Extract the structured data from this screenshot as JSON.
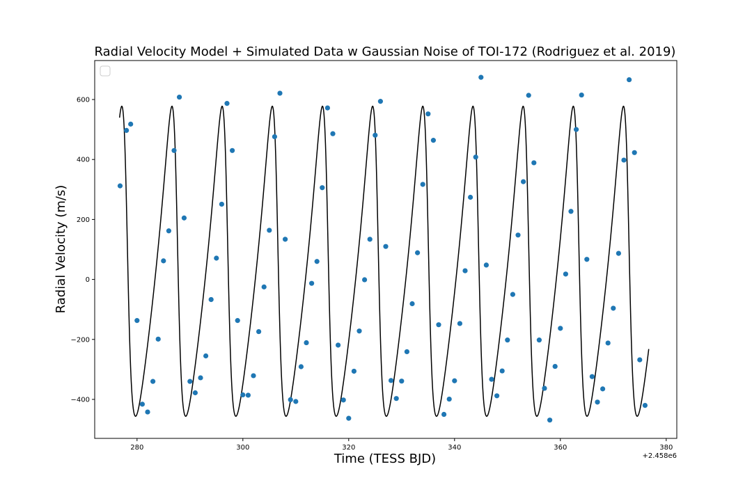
{
  "chart_data": {
    "type": "scatter",
    "title": "Radial Velocity Model + Simulated Data w Gaussian Noise of TOI-172 (Rodriguez et al. 2019)",
    "xlabel": "Time (TESS BJD)",
    "ylabel": "Radial Velocity (m/s)",
    "x_offset_label": "+2.458e6",
    "xlim": [
      272,
      382
    ],
    "ylim": [
      -530,
      730
    ],
    "xticks": [
      280,
      300,
      320,
      340,
      360,
      380
    ],
    "yticks": [
      -400,
      -200,
      0,
      200,
      400,
      600
    ],
    "legend": {
      "placement": "top-left",
      "entries": []
    },
    "colors": {
      "model": "#000000",
      "data": "#1f77b4"
    },
    "model": {
      "period": 9.48,
      "K": 517,
      "gamma": 0,
      "eccentricity": 0.38,
      "omega_deg": 72,
      "time_of_periastron": 278.04,
      "x_range": [
        276.7,
        376.7
      ]
    },
    "series": [
      {
        "x": [
          276.8,
          278.0,
          278.8,
          280.0,
          281.0,
          282.0,
          283.0,
          284.0,
          285.0,
          286.0,
          287.0,
          288.0,
          288.9,
          290.0,
          291.0,
          292.0,
          293.0,
          294.0,
          295.0,
          296.0,
          297.0,
          298.0,
          299.0,
          300.0,
          301.0,
          302.0,
          303.0,
          304.0,
          305.0,
          306.0,
          307.0,
          308.0,
          309.0,
          310.0,
          311.0,
          312.0,
          313.0,
          314.0,
          315.0,
          316.0,
          317.0,
          318.0,
          319.0,
          320.0,
          321.0,
          322.0,
          323.0,
          324.0,
          325.0,
          326.0,
          327.0,
          328.0,
          329.0,
          330.0,
          331.0,
          332.0,
          333.0,
          334.0,
          335.0,
          336.0,
          337.0,
          338.0,
          339.0,
          340.0,
          341.0,
          342.0,
          343.0,
          344.0,
          345.0,
          346.0,
          347.0,
          348.0,
          349.0,
          350.0,
          351.0,
          352.0,
          353.0,
          354.0,
          355.0,
          356.0,
          357.0,
          358.0,
          359.0,
          360.0,
          361.0,
          362.0,
          363.0,
          364.0,
          365.0,
          366.0,
          367.0,
          368.0,
          369.0,
          370.0,
          371.0,
          372.0,
          373.0,
          374.0,
          375.0,
          376.0
        ],
        "y": [
          312,
          497,
          518,
          -137,
          -416,
          -442,
          -340,
          -199,
          62,
          162,
          430,
          608,
          205,
          -340,
          -378,
          -328,
          -255,
          -67,
          71,
          251,
          587,
          430,
          -137,
          -385,
          -386,
          -321,
          -174,
          -25,
          164,
          476,
          621,
          134,
          -401,
          -407,
          -291,
          -211,
          -13,
          60,
          306,
          572,
          486,
          -219,
          -402,
          -463,
          -306,
          -172,
          -1,
          134,
          481,
          594,
          110,
          -337,
          -397,
          -339,
          -241,
          -81,
          89,
          317,
          552,
          464,
          -151,
          -450,
          -399,
          -338,
          -147,
          29,
          274,
          408,
          674,
          48,
          -333,
          -388,
          -305,
          -202,
          -50,
          148,
          326,
          614,
          389,
          -202,
          -363,
          -469,
          -290,
          -163,
          18,
          227,
          500,
          615,
          67,
          -324,
          -409,
          -365,
          -212,
          -96,
          87,
          398,
          666,
          423,
          -268,
          -420
        ]
      }
    ],
    "grid": false
  }
}
